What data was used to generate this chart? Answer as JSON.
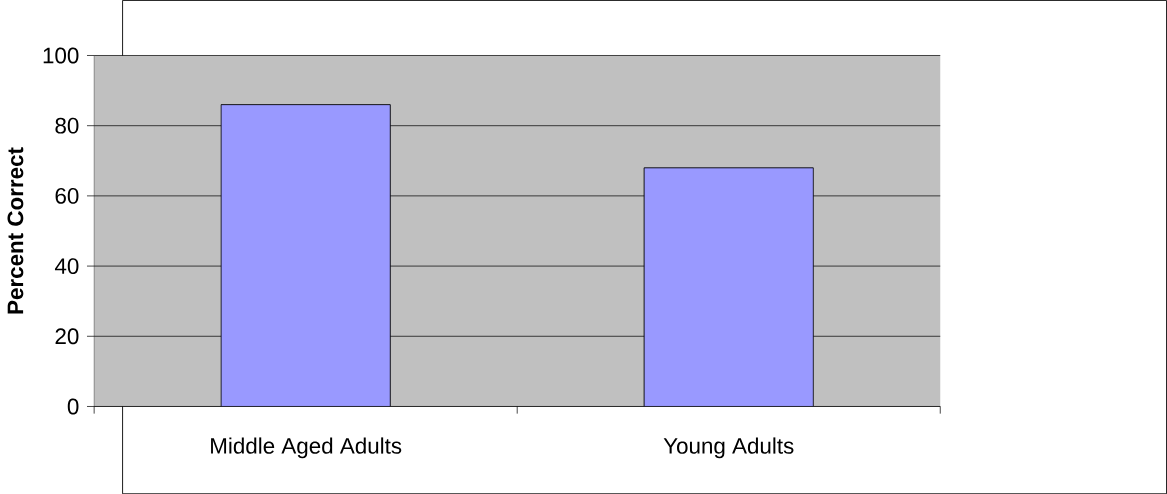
{
  "chart_data": {
    "type": "bar",
    "ylabel": "Percent Correct",
    "categories": [
      "Middle Aged Adults",
      "Young Adults"
    ],
    "values": [
      86,
      68
    ],
    "color": "#9999ff",
    "ylim": [
      0,
      100
    ],
    "yticks": [
      0,
      20,
      40,
      60,
      80,
      100
    ],
    "grid": "y"
  }
}
